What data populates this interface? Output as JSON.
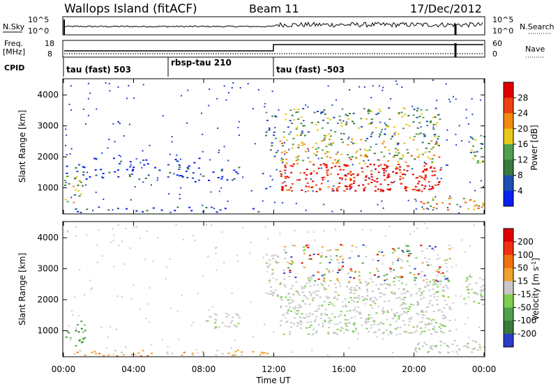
{
  "header": {
    "station": "Wallops Island (fitACF)",
    "beam": "Beam 11",
    "date": "17/Dec/2012"
  },
  "top_panels": {
    "nsky_label": "N.Sky",
    "nsearch_label": "N.Search",
    "nsky_ticks": [
      "10^5",
      "10^0"
    ],
    "nsearch_ticks": [
      "10^5",
      "10^0"
    ],
    "freq_label_1": "Freq.",
    "freq_label_2": "[MHz]",
    "freq_ticks": [
      "18",
      "8"
    ],
    "nave_label": "Nave",
    "nave_ticks": [
      "60",
      "0"
    ],
    "cpid_label": "CPID",
    "cpid_segments": [
      {
        "label": "tau (fast) 503",
        "start_h": 0
      },
      {
        "label": "rbsp-tau 210",
        "start_h": 6
      },
      {
        "label": "tau (fast) -503",
        "start_h": 12
      }
    ]
  },
  "chart_data": [
    {
      "type": "heatmap",
      "name": "power-panel",
      "ylabel": "Slant Range [km]",
      "ylim": [
        180,
        4500
      ],
      "y_ticks": [
        1000,
        2000,
        3000,
        4000
      ],
      "xlim": [
        0,
        24
      ],
      "colorbar": {
        "label": "Power [dB]",
        "ticks": [
          "4",
          "8",
          "12",
          "16",
          "20",
          "24",
          "28"
        ],
        "colors": [
          "#0a1ef0",
          "#1e4fb0",
          "#3a7a3a",
          "#4fa04f",
          "#e8c81a",
          "#f08a10",
          "#f04010",
          "#e00000"
        ]
      },
      "regions": [
        {
          "t": [
            0.0,
            1.2
          ],
          "r": [
            500,
            1400
          ],
          "level": 0.45
        },
        {
          "t": [
            0.0,
            8.0
          ],
          "r": [
            1300,
            2000
          ],
          "level": 0.1
        },
        {
          "t": [
            7.0,
            10.0
          ],
          "r": [
            1100,
            1700
          ],
          "level": 0.1
        },
        {
          "t": [
            0.0,
            12.0
          ],
          "r": [
            200,
            400
          ],
          "level": 0.08
        },
        {
          "t": [
            11.5,
            12.2
          ],
          "r": [
            2000,
            3500
          ],
          "level": 0.3
        },
        {
          "t": [
            12.3,
            21.5
          ],
          "r": [
            900,
            1800
          ],
          "level": 0.95
        },
        {
          "t": [
            12.3,
            21.5
          ],
          "r": [
            1800,
            2600
          ],
          "level": 0.55
        },
        {
          "t": [
            12.5,
            21.5
          ],
          "r": [
            2600,
            3600
          ],
          "level": 0.4
        },
        {
          "t": [
            20.0,
            24.0
          ],
          "r": [
            300,
            700
          ],
          "level": 0.6
        },
        {
          "t": [
            22.8,
            24.0
          ],
          "r": [
            1800,
            2800
          ],
          "level": 0.35
        }
      ]
    },
    {
      "type": "heatmap",
      "name": "velocity-panel",
      "ylabel": "Slant Range [km]",
      "ylim": [
        180,
        4500
      ],
      "y_ticks": [
        1000,
        2000,
        3000,
        4000
      ],
      "xlim": [
        0,
        24
      ],
      "colorbar": {
        "label": "Velocity [m s^-1]",
        "ticks": [
          "200",
          "100",
          "50",
          "15",
          "-15",
          "-50",
          "-100",
          "-200"
        ],
        "colors": [
          "#2a3cc8",
          "#3a7a3a",
          "#4fa04f",
          "#7fcf4f",
          "#c8c8c8",
          "#f0a030",
          "#f07010",
          "#f03010",
          "#e00000"
        ]
      },
      "regions": [
        {
          "t": [
            0.0,
            1.2
          ],
          "r": [
            500,
            1400
          ],
          "level": "green"
        },
        {
          "t": [
            0.0,
            12.0
          ],
          "r": [
            200,
            400
          ],
          "level": "orange"
        },
        {
          "t": [
            8.0,
            10.0
          ],
          "r": [
            1100,
            1600
          ],
          "level": "grey"
        },
        {
          "t": [
            11.5,
            12.2
          ],
          "r": [
            2000,
            3500
          ],
          "level": "grey"
        },
        {
          "t": [
            12.3,
            22.0
          ],
          "r": [
            900,
            2600
          ],
          "level": "grey"
        },
        {
          "t": [
            12.5,
            22.0
          ],
          "r": [
            2600,
            3800
          ],
          "level": "mixed"
        },
        {
          "t": [
            20.0,
            24.0
          ],
          "r": [
            300,
            700
          ],
          "level": "grey"
        },
        {
          "t": [
            22.8,
            24.0
          ],
          "r": [
            1800,
            2800
          ],
          "level": "grey"
        }
      ]
    }
  ],
  "x_axis": {
    "ticks": [
      "00:00",
      "04:00",
      "08:00",
      "12:00",
      "16:00",
      "20:00",
      "00:00"
    ],
    "label": "Time UT"
  }
}
